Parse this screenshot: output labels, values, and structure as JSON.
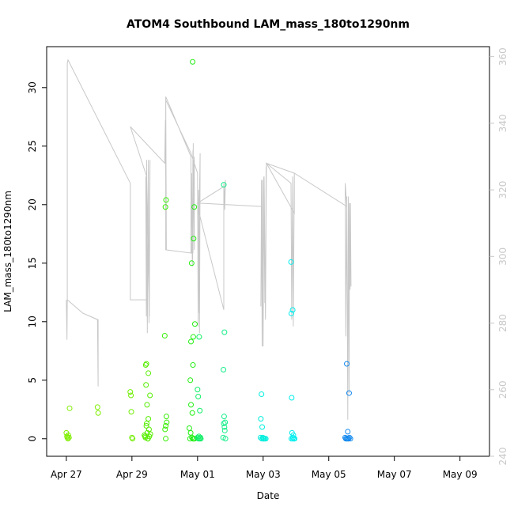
{
  "chart_data": {
    "type": "scatter",
    "title": "ATOM4 Southbound LAM_mass_180to1290nm",
    "xlabel": "Date",
    "ylabel": "LAM_mass_180to1290nm",
    "x_ticks": [
      "Apr 27",
      "Apr 29",
      "May 01",
      "May 03",
      "May 05",
      "May 07",
      "May 09"
    ],
    "y_ticks": [
      0,
      5,
      10,
      15,
      20,
      25,
      30
    ],
    "y2_ticks": [
      240,
      260,
      280,
      300,
      320,
      340,
      360
    ],
    "xlim_days": [
      -0.6,
      12.9
    ],
    "ylim": [
      -1.5,
      33.5
    ],
    "y2lim": [
      240,
      363
    ],
    "grid": false,
    "legend": "none",
    "colors": {
      "line": "#c8c8c8",
      "axis": "#000000",
      "right_axis": "#c8c8c8"
    },
    "series": [
      {
        "kind": "points",
        "groups": [
          {
            "color": "#7FEE00",
            "points": [
              [
                0.0,
                0.5
              ],
              [
                0.02,
                0.2
              ],
              [
                0.03,
                0.1
              ],
              [
                0.05,
                0.0
              ],
              [
                0.06,
                0.3
              ],
              [
                0.1,
                2.6
              ],
              [
                0.08,
                0.1
              ]
            ]
          },
          {
            "color": "#7FEE00",
            "points": [
              [
                0.95,
                2.7
              ],
              [
                0.97,
                2.2
              ]
            ]
          },
          {
            "color": "#6FEE00",
            "points": [
              [
                1.95,
                4.0
              ],
              [
                1.97,
                3.7
              ],
              [
                1.98,
                2.3
              ],
              [
                2.0,
                0.1
              ],
              [
                2.02,
                0.0
              ]
            ]
          },
          {
            "color": "#55EE00",
            "points": [
              [
                2.38,
                0.3
              ],
              [
                2.4,
                0.2
              ],
              [
                2.42,
                6.3
              ],
              [
                2.44,
                6.4
              ],
              [
                2.43,
                4.6
              ],
              [
                2.45,
                1.3
              ],
              [
                2.47,
                0.5
              ],
              [
                2.5,
                1.7
              ],
              [
                2.52,
                0.8
              ],
              [
                2.48,
                0.0
              ],
              [
                2.55,
                3.7
              ],
              [
                2.5,
                5.6
              ],
              [
                2.53,
                0.2
              ],
              [
                2.46,
                2.9
              ],
              [
                2.41,
                0.1
              ],
              [
                2.56,
                0.4
              ],
              [
                2.49,
                0.0
              ],
              [
                2.44,
                1.1
              ]
            ]
          },
          {
            "color": "#33EE00",
            "points": [
              [
                3.0,
                8.8
              ],
              [
                3.02,
                19.8
              ],
              [
                3.04,
                20.4
              ],
              [
                3.05,
                1.9
              ],
              [
                3.03,
                1.1
              ],
              [
                3.06,
                1.4
              ],
              [
                3.01,
                0.8
              ],
              [
                3.03,
                0.0
              ]
            ]
          },
          {
            "color": "#22EE11",
            "points": [
              [
                3.85,
                32.2
              ],
              [
                3.82,
                15.0
              ],
              [
                3.9,
                19.8
              ],
              [
                3.88,
                17.1
              ],
              [
                3.92,
                9.8
              ],
              [
                3.87,
                8.7
              ],
              [
                3.8,
                8.3
              ],
              [
                3.86,
                6.3
              ],
              [
                3.78,
                5.0
              ],
              [
                3.8,
                2.9
              ],
              [
                3.84,
                2.2
              ],
              [
                3.75,
                0.9
              ],
              [
                3.79,
                0.5
              ],
              [
                3.83,
                0.1
              ],
              [
                3.88,
                0.0
              ],
              [
                3.91,
                0.0
              ],
              [
                3.77,
                0.0
              ],
              [
                3.86,
                0.0
              ]
            ]
          },
          {
            "color": "#11EE66",
            "points": [
              [
                4.0,
                4.2
              ],
              [
                4.02,
                3.6
              ],
              [
                4.05,
                8.7
              ],
              [
                4.07,
                2.4
              ],
              [
                4.0,
                0.1
              ],
              [
                4.03,
                0.0
              ],
              [
                4.06,
                0.0
              ],
              [
                4.09,
                0.1
              ],
              [
                4.1,
                0.0
              ],
              [
                4.04,
                0.2
              ]
            ]
          },
          {
            "color": "#11EE88",
            "points": [
              [
                4.8,
                21.7
              ],
              [
                4.82,
                9.1
              ],
              [
                4.79,
                5.9
              ],
              [
                4.81,
                1.9
              ],
              [
                4.8,
                1.3
              ],
              [
                4.82,
                1.0
              ],
              [
                4.83,
                0.7
              ],
              [
                4.78,
                0.1
              ],
              [
                4.85,
                0.0
              ],
              [
                4.84,
                1.4
              ]
            ]
          },
          {
            "color": "#00EEDD",
            "points": [
              [
                5.95,
                3.8
              ],
              [
                5.93,
                1.7
              ],
              [
                5.97,
                1.0
              ],
              [
                5.92,
                0.1
              ],
              [
                5.96,
                0.0
              ],
              [
                6.0,
                0.0
              ],
              [
                6.02,
                0.0
              ],
              [
                6.05,
                0.0
              ],
              [
                6.08,
                0.0
              ],
              [
                5.99,
                0.1
              ]
            ]
          },
          {
            "color": "#00EEEE",
            "points": [
              [
                6.85,
                15.1
              ],
              [
                6.86,
                10.7
              ],
              [
                6.9,
                11.0
              ],
              [
                6.87,
                3.5
              ],
              [
                6.88,
                0.5
              ],
              [
                6.92,
                0.3
              ],
              [
                6.86,
                0.0
              ],
              [
                6.9,
                0.0
              ],
              [
                6.94,
                0.0
              ],
              [
                6.96,
                0.0
              ],
              [
                6.91,
                0.1
              ]
            ]
          },
          {
            "color": "#1188EE",
            "points": [
              [
                8.55,
                6.4
              ],
              [
                8.62,
                3.9
              ],
              [
                8.58,
                0.6
              ],
              [
                8.5,
                0.1
              ],
              [
                8.52,
                0.0
              ],
              [
                8.55,
                0.0
              ],
              [
                8.58,
                0.0
              ],
              [
                8.6,
                0.0
              ],
              [
                8.63,
                0.1
              ],
              [
                8.66,
                0.0
              ]
            ]
          }
        ]
      },
      {
        "kind": "line",
        "axis": "right",
        "points": [
          [
            0.0,
            287
          ],
          [
            0.02,
            275
          ],
          [
            0.03,
            287
          ],
          [
            0.5,
            283
          ],
          [
            0.95,
            281
          ],
          [
            0.97,
            261
          ],
          [
            0.97,
            281
          ],
          [
            0.5,
            283
          ],
          [
            0.03,
            287
          ],
          [
            0.03,
            358
          ],
          [
            0.05,
            359
          ],
          [
            1.95,
            322
          ],
          [
            1.95,
            287
          ],
          [
            2.45,
            287
          ],
          [
            2.42,
            324
          ],
          [
            2.44,
            282
          ],
          [
            2.45,
            329
          ],
          [
            2.47,
            277
          ],
          [
            2.5,
            329
          ],
          [
            2.52,
            280
          ],
          [
            2.55,
            329
          ],
          [
            2.53,
            282
          ],
          [
            2.45,
            324
          ],
          [
            1.95,
            339
          ],
          [
            3.0,
            328
          ],
          [
            3.02,
            341
          ],
          [
            3.04,
            303
          ],
          [
            3.03,
            348
          ],
          [
            3.05,
            302
          ],
          [
            3.03,
            348
          ],
          [
            3.8,
            330
          ],
          [
            3.8,
            301
          ],
          [
            3.82,
            325
          ],
          [
            3.84,
            297
          ],
          [
            3.86,
            332
          ],
          [
            3.85,
            299
          ],
          [
            3.87,
            334
          ],
          [
            3.86,
            301
          ],
          [
            3.88,
            329
          ],
          [
            3.9,
            302
          ],
          [
            3.9,
            330
          ],
          [
            3.82,
            301
          ],
          [
            3.03,
            302
          ],
          [
            3.03,
            347
          ],
          [
            3.8,
            331
          ],
          [
            4.0,
            325
          ],
          [
            4.02,
            279
          ],
          [
            4.03,
            320
          ],
          [
            4.05,
            283
          ],
          [
            4.07,
            324
          ],
          [
            4.06,
            277
          ],
          [
            4.08,
            331
          ],
          [
            4.05,
            313
          ],
          [
            4.8,
            284
          ],
          [
            4.8,
            322
          ],
          [
            4.82,
            318
          ],
          [
            4.83,
            314
          ],
          [
            4.85,
            323
          ],
          [
            4.82,
            316
          ],
          [
            4.8,
            321
          ],
          [
            4.0,
            316
          ],
          [
            4.05,
            316
          ],
          [
            5.95,
            315
          ],
          [
            5.93,
            285
          ],
          [
            5.95,
            323
          ],
          [
            5.97,
            273
          ],
          [
            5.98,
            323
          ],
          [
            6.0,
            273
          ],
          [
            6.02,
            324
          ],
          [
            6.05,
            286
          ],
          [
            6.03,
            324
          ],
          [
            6.07,
            281
          ],
          [
            6.09,
            327
          ],
          [
            6.07,
            281
          ],
          [
            6.1,
            328
          ],
          [
            6.85,
            322
          ],
          [
            6.87,
            281
          ],
          [
            6.9,
            324
          ],
          [
            6.92,
            279
          ],
          [
            6.95,
            325
          ],
          [
            6.95,
            313
          ],
          [
            6.1,
            328
          ],
          [
            6.95,
            325
          ],
          [
            8.55,
            315
          ],
          [
            8.5,
            322
          ],
          [
            8.52,
            276
          ],
          [
            8.55,
            318
          ],
          [
            8.58,
            251
          ],
          [
            8.6,
            318
          ],
          [
            8.62,
            259
          ],
          [
            8.63,
            316
          ],
          [
            8.65,
            290
          ],
          [
            8.66,
            316
          ],
          [
            8.68,
            291
          ]
        ]
      }
    ]
  }
}
